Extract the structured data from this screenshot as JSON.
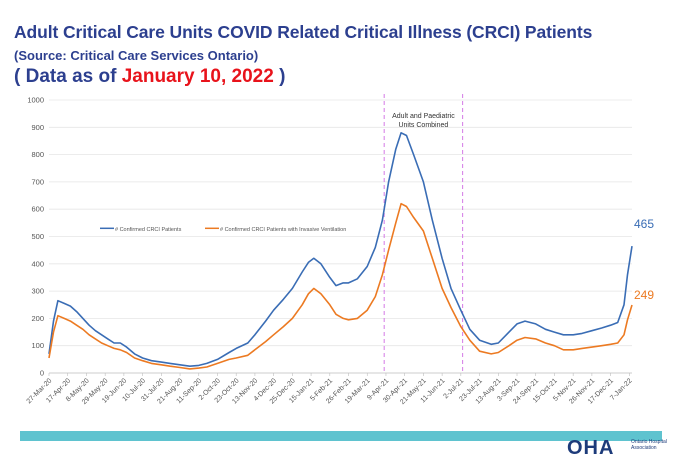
{
  "header": {
    "title": "Adult Critical Care Units COVID Related Critical Illness (CRCI) Patients",
    "source": "(Source: Critical Care Services Ontario)",
    "asof_open": "(  Data as of",
    "asof_date": "January 10, 2022",
    "asof_close": ")"
  },
  "logo": {
    "text": "OHA",
    "subtitle": "Ontario Hospital Association"
  },
  "colors": {
    "title": "#2c3f8f",
    "date": "#e8131b",
    "series1": "#3a6db5",
    "series2": "#ec7a22",
    "footer": "#5fc3cf",
    "marker": "#d479e6"
  },
  "chart_data": {
    "type": "line",
    "title": "",
    "xlabel": "",
    "ylabel": "",
    "ylim": [
      0,
      1000
    ],
    "yticks": [
      0,
      100,
      200,
      300,
      400,
      500,
      600,
      700,
      800,
      900,
      1000
    ],
    "grid": true,
    "legend_placement": "left-center",
    "xtick_labels": [
      "27-Mar-20",
      "17-Apr-20",
      "8-May-20",
      "29-May-20",
      "19-Jun-20",
      "10-Jul-20",
      "31-Jul-20",
      "21-Aug-20",
      "11-Sep-20",
      "2-Oct-20",
      "23-Oct-20",
      "13-Nov-20",
      "4-Dec-20",
      "25-Dec-20",
      "15-Jan-21",
      "5-Feb-21",
      "26-Feb-21",
      "19-Mar-21",
      "9-Apr-21",
      "30-Apr-21",
      "21-May-21",
      "11-Jun-21",
      "2-Jul-21",
      "23-Jul-21",
      "13-Aug-21",
      "3-Sep-21",
      "24-Sep-21",
      "15-Oct-21",
      "5-Nov-21",
      "26-Nov-21",
      "17-Dec-21",
      "7-Jan-22"
    ],
    "annotation": "Adult and Paediatric\nUnits Combined",
    "vertical_markers": [
      "7-Apr-21",
      "4-Jul-21"
    ],
    "series": [
      {
        "name": "# Confirmed CRCI Patients",
        "end_label": "465",
        "points": [
          [
            "2020-03-27",
            70
          ],
          [
            "2020-04-01",
            190
          ],
          [
            "2020-04-06",
            265
          ],
          [
            "2020-04-13",
            255
          ],
          [
            "2020-04-20",
            245
          ],
          [
            "2020-04-27",
            225
          ],
          [
            "2020-05-04",
            200
          ],
          [
            "2020-05-11",
            175
          ],
          [
            "2020-05-18",
            155
          ],
          [
            "2020-05-25",
            140
          ],
          [
            "2020-06-01",
            125
          ],
          [
            "2020-06-08",
            110
          ],
          [
            "2020-06-15",
            110
          ],
          [
            "2020-06-22",
            95
          ],
          [
            "2020-07-01",
            70
          ],
          [
            "2020-07-10",
            55
          ],
          [
            "2020-07-20",
            45
          ],
          [
            "2020-07-31",
            40
          ],
          [
            "2020-08-10",
            35
          ],
          [
            "2020-08-21",
            30
          ],
          [
            "2020-09-01",
            25
          ],
          [
            "2020-09-11",
            28
          ],
          [
            "2020-09-20",
            35
          ],
          [
            "2020-10-02",
            50
          ],
          [
            "2020-10-15",
            75
          ],
          [
            "2020-10-23",
            90
          ],
          [
            "2020-11-05",
            110
          ],
          [
            "2020-11-13",
            140
          ],
          [
            "2020-11-25",
            190
          ],
          [
            "2020-12-04",
            230
          ],
          [
            "2020-12-15",
            270
          ],
          [
            "2020-12-25",
            310
          ],
          [
            "2021-01-05",
            370
          ],
          [
            "2021-01-12",
            405
          ],
          [
            "2021-01-18",
            420
          ],
          [
            "2021-01-26",
            400
          ],
          [
            "2021-02-05",
            350
          ],
          [
            "2021-02-12",
            320
          ],
          [
            "2021-02-20",
            330
          ],
          [
            "2021-02-26",
            330
          ],
          [
            "2021-03-08",
            345
          ],
          [
            "2021-03-19",
            390
          ],
          [
            "2021-03-28",
            460
          ],
          [
            "2021-04-05",
            560
          ],
          [
            "2021-04-12",
            700
          ],
          [
            "2021-04-20",
            820
          ],
          [
            "2021-04-26",
            880
          ],
          [
            "2021-05-02",
            870
          ],
          [
            "2021-05-10",
            800
          ],
          [
            "2021-05-21",
            700
          ],
          [
            "2021-05-31",
            560
          ],
          [
            "2021-06-11",
            420
          ],
          [
            "2021-06-21",
            310
          ],
          [
            "2021-07-02",
            230
          ],
          [
            "2021-07-12",
            160
          ],
          [
            "2021-07-23",
            120
          ],
          [
            "2021-08-05",
            105
          ],
          [
            "2021-08-13",
            110
          ],
          [
            "2021-08-25",
            150
          ],
          [
            "2021-09-03",
            180
          ],
          [
            "2021-09-12",
            190
          ],
          [
            "2021-09-24",
            180
          ],
          [
            "2021-10-05",
            160
          ],
          [
            "2021-10-15",
            150
          ],
          [
            "2021-10-25",
            140
          ],
          [
            "2021-11-05",
            140
          ],
          [
            "2021-11-15",
            145
          ],
          [
            "2021-11-26",
            155
          ],
          [
            "2021-12-07",
            165
          ],
          [
            "2021-12-17",
            175
          ],
          [
            "2021-12-25",
            185
          ],
          [
            "2022-01-01",
            250
          ],
          [
            "2022-01-05",
            360
          ],
          [
            "2022-01-10",
            465
          ]
        ]
      },
      {
        "name": "# Confirmed CRCI Patients with Invasive Ventilation",
        "end_label": "249",
        "points": [
          [
            "2020-03-27",
            55
          ],
          [
            "2020-04-01",
            150
          ],
          [
            "2020-04-06",
            210
          ],
          [
            "2020-04-13",
            200
          ],
          [
            "2020-04-20",
            190
          ],
          [
            "2020-04-27",
            175
          ],
          [
            "2020-05-04",
            160
          ],
          [
            "2020-05-11",
            140
          ],
          [
            "2020-05-18",
            125
          ],
          [
            "2020-05-25",
            110
          ],
          [
            "2020-06-01",
            100
          ],
          [
            "2020-06-08",
            90
          ],
          [
            "2020-06-15",
            85
          ],
          [
            "2020-06-22",
            75
          ],
          [
            "2020-07-01",
            55
          ],
          [
            "2020-07-10",
            45
          ],
          [
            "2020-07-20",
            35
          ],
          [
            "2020-07-31",
            30
          ],
          [
            "2020-08-10",
            25
          ],
          [
            "2020-08-21",
            20
          ],
          [
            "2020-09-01",
            15
          ],
          [
            "2020-09-11",
            18
          ],
          [
            "2020-09-20",
            22
          ],
          [
            "2020-10-02",
            35
          ],
          [
            "2020-10-15",
            50
          ],
          [
            "2020-10-23",
            55
          ],
          [
            "2020-11-05",
            65
          ],
          [
            "2020-11-13",
            85
          ],
          [
            "2020-11-25",
            115
          ],
          [
            "2020-12-04",
            140
          ],
          [
            "2020-12-15",
            170
          ],
          [
            "2020-12-25",
            200
          ],
          [
            "2021-01-05",
            250
          ],
          [
            "2021-01-12",
            290
          ],
          [
            "2021-01-18",
            310
          ],
          [
            "2021-01-26",
            290
          ],
          [
            "2021-02-05",
            250
          ],
          [
            "2021-02-12",
            215
          ],
          [
            "2021-02-20",
            200
          ],
          [
            "2021-02-26",
            195
          ],
          [
            "2021-03-08",
            200
          ],
          [
            "2021-03-19",
            230
          ],
          [
            "2021-03-28",
            280
          ],
          [
            "2021-04-05",
            360
          ],
          [
            "2021-04-12",
            450
          ],
          [
            "2021-04-20",
            550
          ],
          [
            "2021-04-26",
            620
          ],
          [
            "2021-05-02",
            610
          ],
          [
            "2021-05-10",
            570
          ],
          [
            "2021-05-21",
            520
          ],
          [
            "2021-05-31",
            420
          ],
          [
            "2021-06-11",
            310
          ],
          [
            "2021-06-21",
            240
          ],
          [
            "2021-07-02",
            170
          ],
          [
            "2021-07-12",
            120
          ],
          [
            "2021-07-23",
            80
          ],
          [
            "2021-08-05",
            70
          ],
          [
            "2021-08-13",
            75
          ],
          [
            "2021-08-25",
            100
          ],
          [
            "2021-09-03",
            120
          ],
          [
            "2021-09-12",
            130
          ],
          [
            "2021-09-24",
            125
          ],
          [
            "2021-10-05",
            110
          ],
          [
            "2021-10-15",
            100
          ],
          [
            "2021-10-25",
            85
          ],
          [
            "2021-11-05",
            85
          ],
          [
            "2021-11-15",
            90
          ],
          [
            "2021-11-26",
            95
          ],
          [
            "2021-12-07",
            100
          ],
          [
            "2021-12-17",
            105
          ],
          [
            "2021-12-25",
            110
          ],
          [
            "2022-01-01",
            140
          ],
          [
            "2022-01-05",
            195
          ],
          [
            "2022-01-10",
            249
          ]
        ]
      }
    ]
  }
}
